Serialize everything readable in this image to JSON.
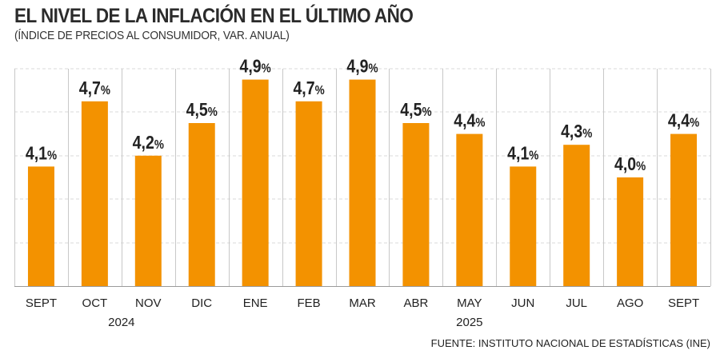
{
  "title": "EL NIVEL DE LA INFLACIÓN EN EL ÚLTIMO AÑO",
  "subtitle": "(ÍNDICE DE PRECIOS AL CONSUMIDOR, VAR. ANUAL)",
  "source": "FUENTE: INSTITUTO NACIONAL DE ESTADÍSTICAS (INE)",
  "colors": {
    "bar": "#F39200",
    "grid": "#d9d9d9",
    "divider": "#c8c8c8",
    "text": "#222222"
  },
  "chart_data": {
    "type": "bar",
    "categories": [
      "SEPT",
      "OCT",
      "NOV",
      "DIC",
      "ENE",
      "FEB",
      "MAR",
      "ABR",
      "MAY",
      "JUN",
      "JUL",
      "AGO",
      "SEPT"
    ],
    "values": [
      4.1,
      4.7,
      4.2,
      4.5,
      4.9,
      4.7,
      4.9,
      4.5,
      4.4,
      4.1,
      4.3,
      4.0,
      4.4
    ],
    "value_labels": [
      "4,1%",
      "4,7%",
      "4,2%",
      "4,5%",
      "4,9%",
      "4,7%",
      "4,9%",
      "4,5%",
      "4,4%",
      "4,1%",
      "4,3%",
      "4,0%",
      "4,4%"
    ],
    "year_groups": [
      {
        "label": "2024",
        "start": 0,
        "end": 3
      },
      {
        "label": "2025",
        "start": 4,
        "end": 12
      }
    ],
    "ylim": [
      3.0,
      5.0
    ],
    "grid": true,
    "legend": "none"
  }
}
